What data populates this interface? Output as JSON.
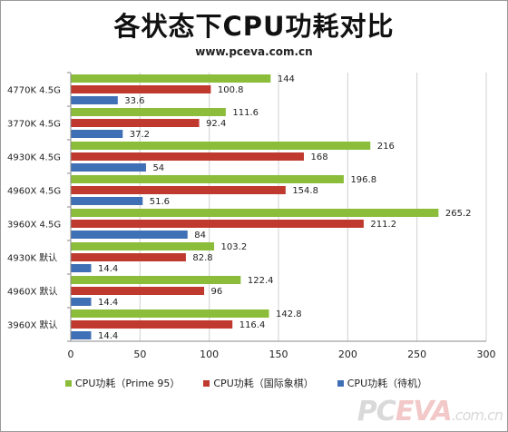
{
  "chart_data": {
    "type": "bar",
    "orientation": "horizontal",
    "title": "各状态下CPU功耗对比",
    "subtitle": "www.pceva.com.cn",
    "categories": [
      "4770K 4.5G",
      "3770K 4.5G",
      "4930K 4.5G",
      "4960X 4.5G",
      "3960X 4.5G",
      "4930K 默认",
      "4960X 默认",
      "3960X 默认"
    ],
    "series": [
      {
        "name": "CPU功耗（Prime 95）",
        "color": "#8cbd3a",
        "values": [
          144,
          111.6,
          216,
          196.8,
          265.2,
          103.2,
          122.4,
          142.8
        ]
      },
      {
        "name": "CPU功耗（国际象棋）",
        "color": "#c0392f",
        "values": [
          100.8,
          92.4,
          168,
          154.8,
          211.2,
          82.8,
          96,
          116.4
        ]
      },
      {
        "name": "CPU功耗（待机）",
        "color": "#3f6fb5",
        "values": [
          33.6,
          37.2,
          54,
          51.6,
          84,
          14.4,
          14.4,
          14.4
        ]
      }
    ],
    "xlim": [
      0,
      300
    ],
    "xticks": [
      0,
      50,
      100,
      150,
      200,
      250,
      300
    ],
    "grid": true,
    "legend_position": "bottom"
  },
  "watermark": {
    "part1": "PC",
    "part2": "EVA",
    "part3": ".com.cn"
  }
}
